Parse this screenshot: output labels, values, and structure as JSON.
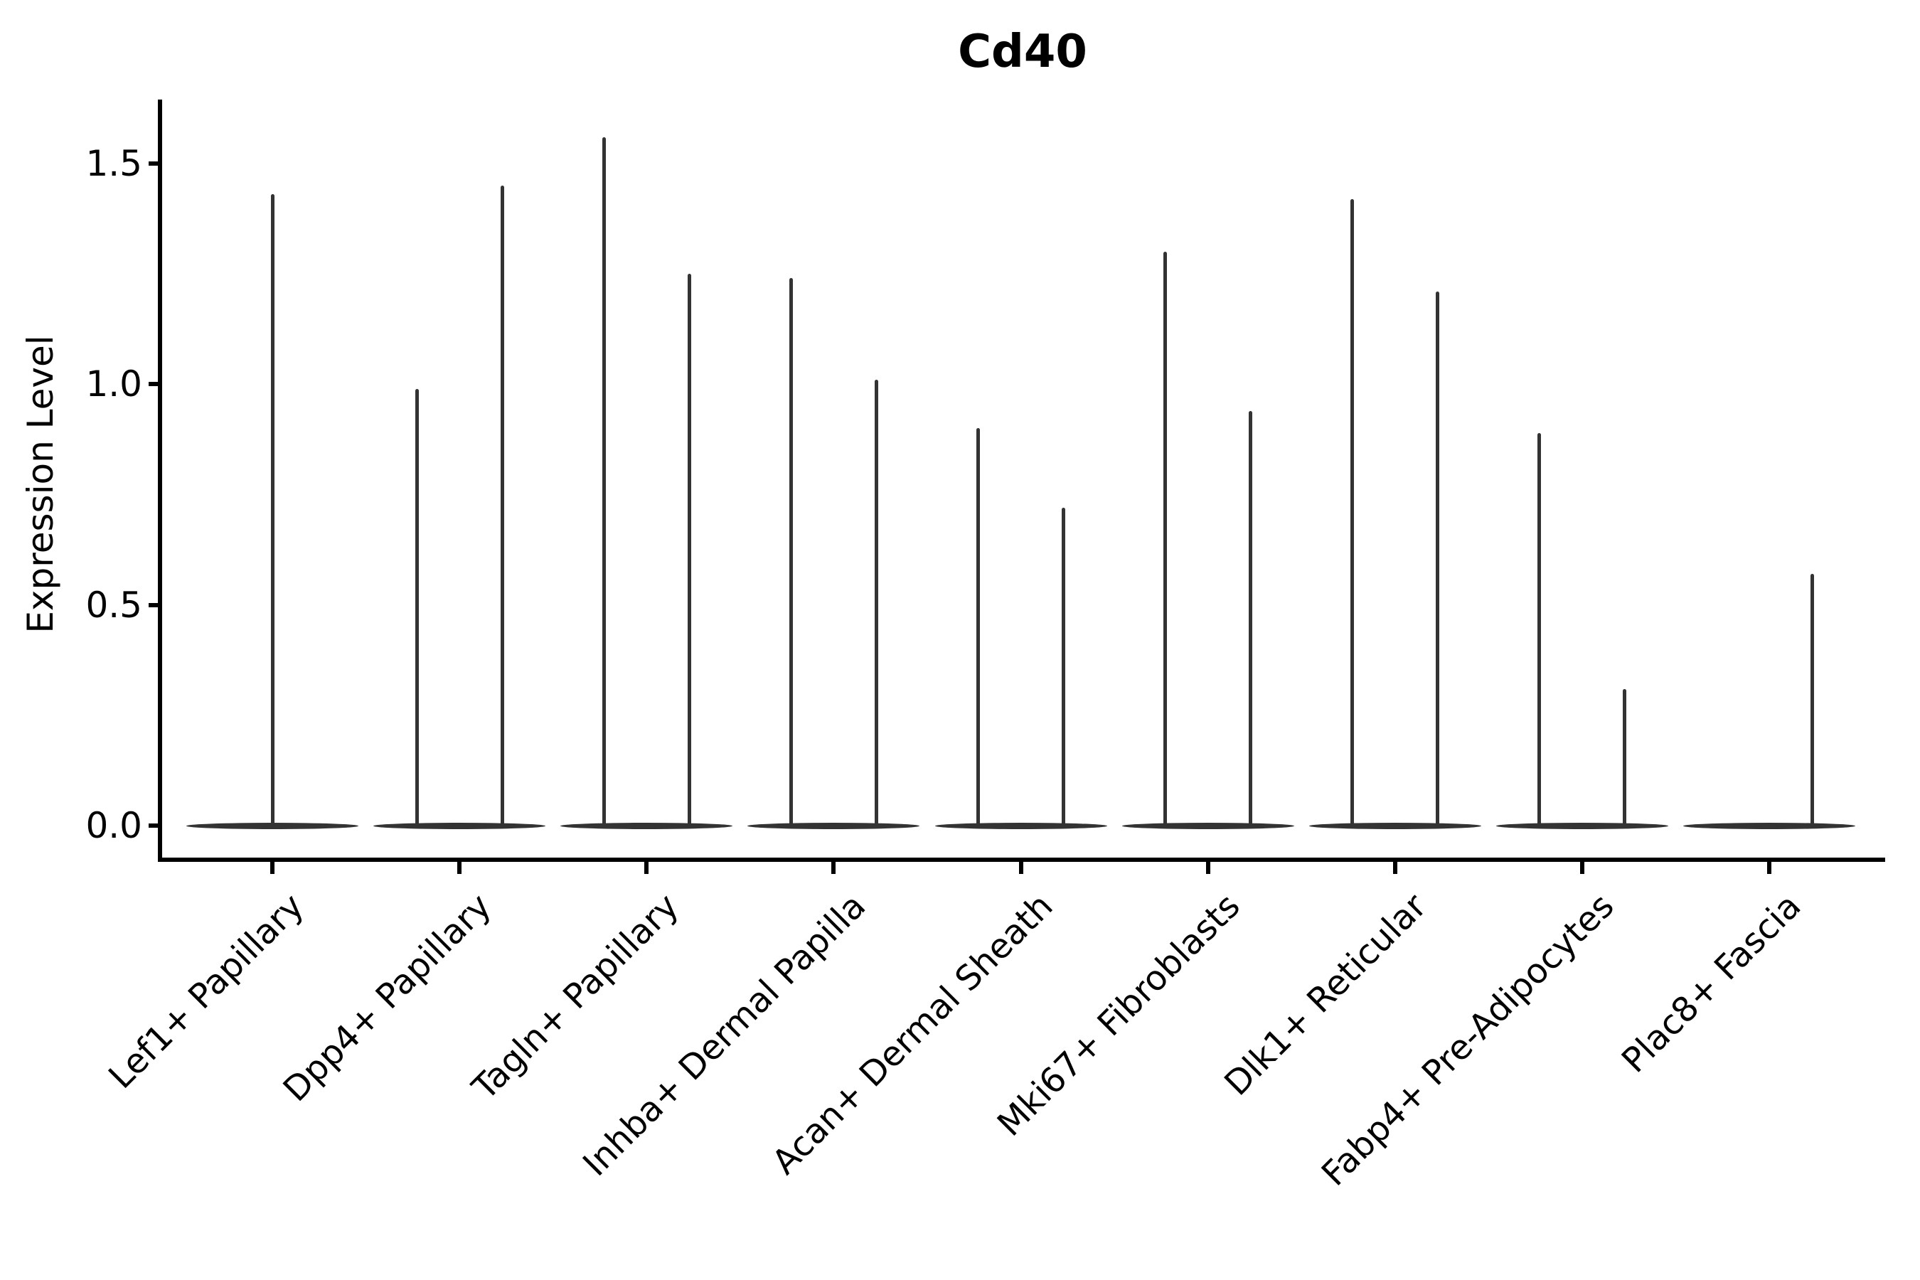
{
  "figure": {
    "title": "Cd40",
    "ylabel": "Expression Level"
  },
  "colors": {
    "violin": "#333333",
    "axis": "#000000",
    "text": "#000000",
    "background": "#ffffff"
  },
  "chart_data": {
    "type": "violin",
    "title": "Cd40",
    "xlabel": "",
    "ylabel": "Expression Level",
    "yticks": [
      0.0,
      0.5,
      1.0,
      1.5
    ],
    "ylim": [
      -0.08,
      1.65
    ],
    "grid": false,
    "legend": null,
    "categories": [
      "Lef1+ Papillary",
      "Dpp4+ Papillary",
      "Tagln+ Papillary",
      "Inhba+ Dermal Papilla",
      "Acan+ Dermal Sheath",
      "Mki67+ Fibroblasts",
      "Dlk1+ Reticular",
      "Fabp4+ Pre-Adipocytes",
      "Plac8+ Fascia"
    ],
    "description": "Violin plot of Cd40 expression; each cell type shows a flat density body at expression 0 with thin spikes reaching the maximum expression of rare positive cells.",
    "violins": [
      {
        "category": "Lef1+ Papillary",
        "baseline_value": 0.0,
        "spikes": [
          {
            "position": "center",
            "max_value": 1.43
          }
        ]
      },
      {
        "category": "Dpp4+ Papillary",
        "baseline_value": 0.0,
        "spikes": [
          {
            "position": "left",
            "max_value": 0.99
          },
          {
            "position": "right",
            "max_value": 1.45
          }
        ]
      },
      {
        "category": "Tagln+ Papillary",
        "baseline_value": 0.0,
        "spikes": [
          {
            "position": "left",
            "max_value": 1.56
          },
          {
            "position": "right",
            "max_value": 1.25
          }
        ]
      },
      {
        "category": "Inhba+ Dermal Papilla",
        "baseline_value": 0.0,
        "spikes": [
          {
            "position": "left",
            "max_value": 1.24
          },
          {
            "position": "right",
            "max_value": 1.01
          }
        ]
      },
      {
        "category": "Acan+ Dermal Sheath",
        "baseline_value": 0.0,
        "spikes": [
          {
            "position": "left",
            "max_value": 0.9
          },
          {
            "position": "right",
            "max_value": 0.72
          }
        ]
      },
      {
        "category": "Mki67+ Fibroblasts",
        "baseline_value": 0.0,
        "spikes": [
          {
            "position": "left",
            "max_value": 1.3
          },
          {
            "position": "right",
            "max_value": 0.94
          }
        ]
      },
      {
        "category": "Dlk1+ Reticular",
        "baseline_value": 0.0,
        "spikes": [
          {
            "position": "left",
            "max_value": 1.42
          },
          {
            "position": "right",
            "max_value": 1.21
          }
        ]
      },
      {
        "category": "Fabp4+ Pre-Adipocytes",
        "baseline_value": 0.0,
        "spikes": [
          {
            "position": "left",
            "max_value": 0.89
          },
          {
            "position": "right",
            "max_value": 0.31
          }
        ]
      },
      {
        "category": "Plac8+ Fascia",
        "baseline_value": 0.0,
        "spikes": [
          {
            "position": "right",
            "max_value": 0.57
          }
        ]
      }
    ]
  }
}
